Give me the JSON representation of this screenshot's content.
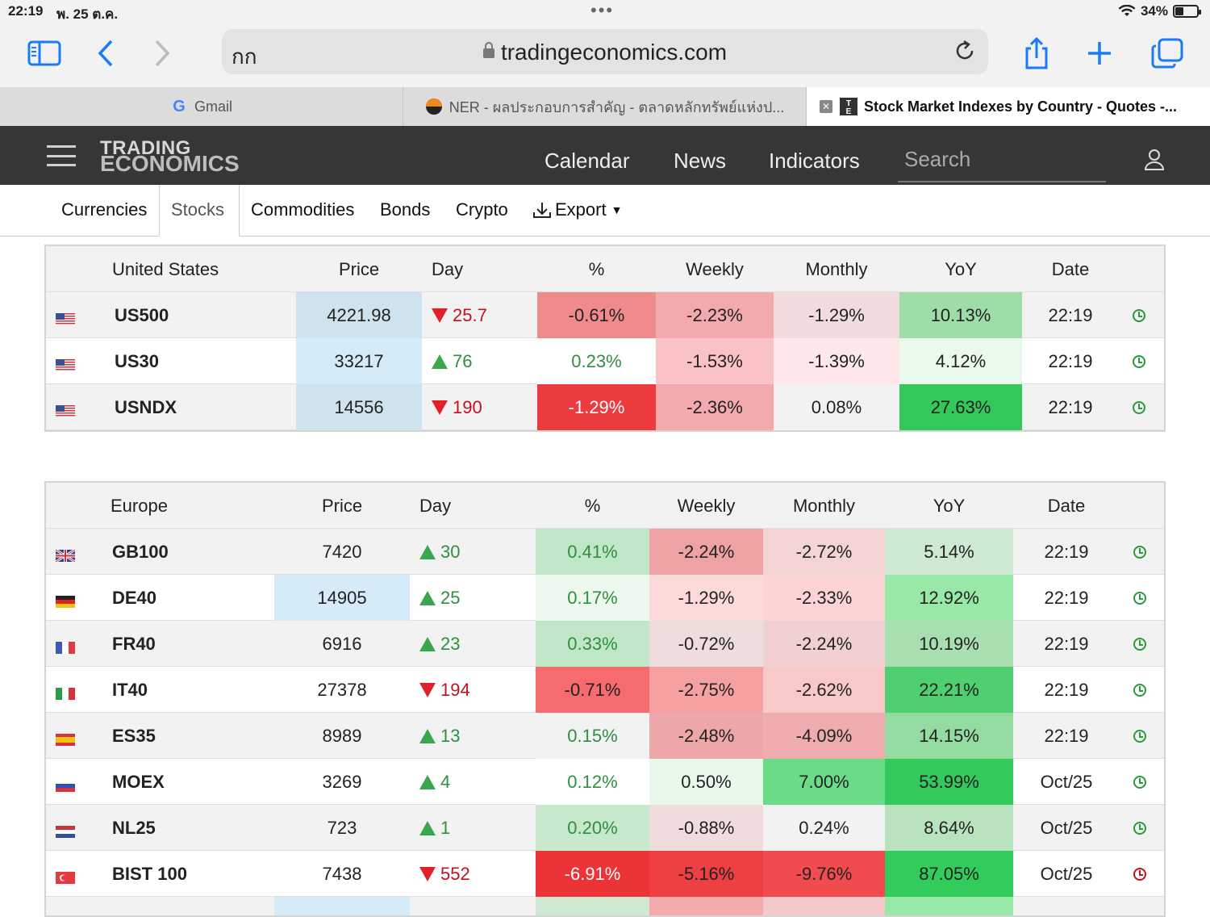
{
  "status": {
    "time": "22:19",
    "date": "พ. 25 ต.ค.",
    "battery": "34%"
  },
  "browser": {
    "aa": "กก",
    "url": "tradingeconomics.com",
    "tabs": [
      {
        "label": "Gmail"
      },
      {
        "label": "NER - ผลประกอบการสำคัญ - ตลาดหลักทรัพย์แห่งป..."
      },
      {
        "label": "Stock Market Indexes by Country - Quotes -..."
      }
    ]
  },
  "site": {
    "logo_line1": "TRADING",
    "logo_line2": "ECONOMICS",
    "nav": [
      "Calendar",
      "News",
      "Indicators"
    ],
    "search_placeholder": "Search",
    "subnav": [
      "Currencies",
      "Stocks",
      "Commodities",
      "Bonds",
      "Crypto",
      "Export"
    ]
  },
  "us_table": {
    "headers": [
      "United States",
      "Price",
      "Day",
      "%",
      "Weekly",
      "Monthly",
      "YoY",
      "Date"
    ],
    "rows": [
      {
        "symbol": "US500",
        "price": "4221.98",
        "day": "25.7",
        "dir": "down",
        "pct": "-0.61%",
        "weekly": "-2.23%",
        "monthly": "-1.29%",
        "yoy": "10.13%",
        "date": "22:19"
      },
      {
        "symbol": "US30",
        "price": "33217",
        "day": "76",
        "dir": "up",
        "pct": "0.23%",
        "weekly": "-1.53%",
        "monthly": "-1.39%",
        "yoy": "4.12%",
        "date": "22:19"
      },
      {
        "symbol": "USNDX",
        "price": "14556",
        "day": "190",
        "dir": "down",
        "pct": "-1.29%",
        "weekly": "-2.36%",
        "monthly": "0.08%",
        "yoy": "27.63%",
        "date": "22:19"
      }
    ]
  },
  "eu_table": {
    "headers": [
      "Europe",
      "Price",
      "Day",
      "%",
      "Weekly",
      "Monthly",
      "YoY",
      "Date"
    ],
    "rows": [
      {
        "symbol": "GB100",
        "price": "7420",
        "day": "30",
        "dir": "up",
        "pct": "0.41%",
        "weekly": "-2.24%",
        "monthly": "-2.72%",
        "yoy": "5.14%",
        "date": "22:19"
      },
      {
        "symbol": "DE40",
        "price": "14905",
        "day": "25",
        "dir": "up",
        "pct": "0.17%",
        "weekly": "-1.29%",
        "monthly": "-2.33%",
        "yoy": "12.92%",
        "date": "22:19"
      },
      {
        "symbol": "FR40",
        "price": "6916",
        "day": "23",
        "dir": "up",
        "pct": "0.33%",
        "weekly": "-0.72%",
        "monthly": "-2.24%",
        "yoy": "10.19%",
        "date": "22:19"
      },
      {
        "symbol": "IT40",
        "price": "27378",
        "day": "194",
        "dir": "down",
        "pct": "-0.71%",
        "weekly": "-2.75%",
        "monthly": "-2.62%",
        "yoy": "22.21%",
        "date": "22:19"
      },
      {
        "symbol": "ES35",
        "price": "8989",
        "day": "13",
        "dir": "up",
        "pct": "0.15%",
        "weekly": "-2.48%",
        "monthly": "-4.09%",
        "yoy": "14.15%",
        "date": "22:19"
      },
      {
        "symbol": "MOEX",
        "price": "3269",
        "day": "4",
        "dir": "up",
        "pct": "0.12%",
        "weekly": "0.50%",
        "monthly": "7.00%",
        "yoy": "53.99%",
        "date": "Oct/25"
      },
      {
        "symbol": "NL25",
        "price": "723",
        "day": "1",
        "dir": "up",
        "pct": "0.20%",
        "weekly": "-0.88%",
        "monthly": "0.24%",
        "yoy": "8.64%",
        "date": "Oct/25"
      },
      {
        "symbol": "BIST 100",
        "price": "7438",
        "day": "552",
        "dir": "down",
        "pct": "-6.91%",
        "weekly": "-5.16%",
        "monthly": "-9.76%",
        "yoy": "87.05%",
        "date": "Oct/25"
      }
    ]
  },
  "colors": {
    "price_highlight": "#cfe3f0",
    "price_highlight_light": "#d6ebf8",
    "header_dark": "#363636"
  }
}
